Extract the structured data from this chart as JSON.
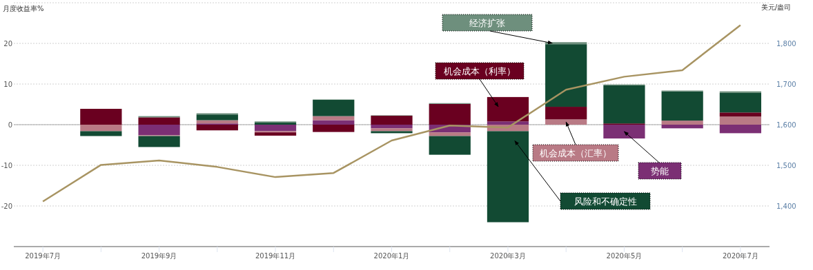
{
  "chart_data": {
    "type": "bar",
    "stacked": true,
    "ylabel": "月度收益率%",
    "y2label": "美元/盎司",
    "categories": [
      "2019年7月",
      null,
      "2019年9月",
      null,
      "2019年11月",
      null,
      "2020年1月",
      null,
      "2020年3月",
      null,
      "2020年5月",
      null,
      "2020年7月"
    ],
    "series": [
      {
        "name": "势能",
        "color": "#7b2f74",
        "values": [
          null,
          0,
          -2.6,
          0.3,
          -1.6,
          1.1,
          -0.9,
          -1.9,
          0.8,
          0,
          -3.4,
          -0.9,
          -2.1
        ]
      },
      {
        "name": "机会成本（汇率）",
        "color": "#b97a85",
        "values": [
          null,
          -1.6,
          -0.2,
          0.8,
          -0.3,
          1.0,
          -0.7,
          -0.9,
          -1.6,
          1.3,
          0,
          1.0,
          2.0
        ]
      },
      {
        "name": "机会成本（利率）",
        "color": "#6a0020",
        "values": [
          null,
          3.9,
          1.8,
          -1.4,
          -0.8,
          -1.8,
          2.2,
          5.1,
          6.0,
          3.1,
          0.3,
          0,
          1.0
        ]
      },
      {
        "name": "风险和不确定性",
        "color": "#124a33",
        "values": [
          null,
          -1.2,
          -2.7,
          1.4,
          0.5,
          4.0,
          -0.5,
          -4.6,
          -22.4,
          15.4,
          9.4,
          7.2,
          4.8
        ]
      },
      {
        "name": "经济扩张",
        "color": "#6e8f7d",
        "values": [
          null,
          0,
          0.3,
          0.3,
          0.3,
          0.1,
          0.1,
          0.2,
          0,
          0.5,
          0.2,
          0.2,
          0.4
        ]
      },
      {
        "type": "line",
        "axis": "y2",
        "color": "#a89462",
        "values": [
          1411,
          1501,
          1512,
          1496,
          1471,
          1481,
          1561,
          1598,
          1593,
          1686,
          1718,
          1734,
          1845
        ]
      }
    ],
    "ylim": [
      -30,
      30
    ],
    "yticks": [
      -20,
      -10,
      0,
      10,
      20,
      {
        "value": 30,
        "label": null
      }
    ],
    "y2lim": [
      1300,
      1900
    ],
    "y2ticks": [
      {
        "value": 1400,
        "label": "1,400"
      },
      {
        "value": 1500,
        "label": "1,500"
      },
      {
        "value": 1600,
        "label": "1,600"
      },
      {
        "value": 1700,
        "label": "1,700"
      },
      {
        "value": 1800,
        "label": "1,800"
      }
    ],
    "grid": "y"
  }
}
